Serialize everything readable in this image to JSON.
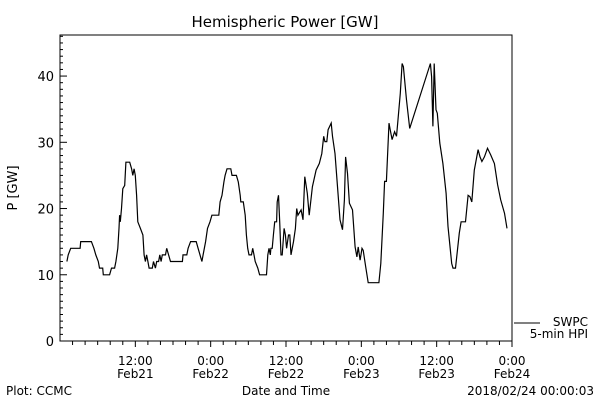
{
  "chart_data": {
    "type": "line",
    "title": "Hemispheric Power [GW]",
    "xlabel": "Date and Time",
    "ylabel": "P [GW]",
    "x_units": "hours since 0:00 Feb21",
    "xlim": [
      0,
      72
    ],
    "ylim": [
      0,
      46.2
    ],
    "grid": false,
    "y_ticks": [
      0,
      10,
      20,
      30,
      40
    ],
    "x_ticks": [
      {
        "hour": 12,
        "time": "12:00",
        "date": "Feb21"
      },
      {
        "hour": 24,
        "time": "0:00",
        "date": "Feb22"
      },
      {
        "hour": 36,
        "time": "12:00",
        "date": "Feb22"
      },
      {
        "hour": 48,
        "time": "0:00",
        "date": "Feb23"
      },
      {
        "hour": 60,
        "time": "12:00",
        "date": "Feb23"
      },
      {
        "hour": 72,
        "time": "0:00",
        "date": "Feb24"
      }
    ],
    "legend": {
      "placement": "bottom-right",
      "line1": "SWPC",
      "line2": "5-min HPI"
    },
    "series": [
      {
        "name": "SWPC 5-min HPI",
        "color": "#000000",
        "x": [
          1.1,
          1.3,
          1.7,
          3.2,
          3.3,
          5,
          5.4,
          5.7,
          6.1,
          6.3,
          6.8,
          6.9,
          7.9,
          8.2,
          8.7,
          8.9,
          9.2,
          9.4,
          9.5,
          9.6,
          9.8,
          10,
          10.3,
          10.5,
          11.1,
          11.4,
          11.6,
          11.8,
          12,
          12.2,
          12.4,
          12.8,
          13.2,
          13.4,
          13.6,
          13.8,
          14,
          14.2,
          14.7,
          14.9,
          15.2,
          15.4,
          15.7,
          15.9,
          16.1,
          16.3,
          16.8,
          17,
          17.3,
          17.6,
          19.5,
          19.6,
          20.2,
          20.4,
          20.8,
          21.7,
          22,
          22.3,
          22.6,
          22.8,
          23.2,
          23.5,
          23.9,
          24.2,
          25.3,
          25.5,
          25.8,
          26.1,
          26.3,
          26.6,
          27.2,
          27.4,
          28.1,
          28.4,
          28.7,
          28.8,
          29.2,
          29.5,
          29.7,
          29.9,
          30.1,
          30.5,
          30.7,
          30.9,
          31.1,
          31.5,
          31.8,
          32.9,
          33.1,
          33.3,
          33.5,
          33.6,
          33.8,
          34,
          34.2,
          34.5,
          34.6,
          34.8,
          35,
          35.2,
          35.4,
          35.7,
          35.9,
          36.1,
          36.4,
          36.6,
          36.8,
          37.2,
          37.5,
          37.7,
          37.9,
          38.4,
          38.7,
          39,
          39.4,
          39.7,
          40.2,
          40.8,
          41.3,
          41.7,
          42,
          42.2,
          42.5,
          42.7,
          43.2,
          43.4,
          43.8,
          44.2,
          44.6,
          45,
          45.3,
          45.5,
          45.8,
          46.1,
          46.6,
          47,
          47.3,
          47.5,
          47.8,
          48.1,
          48.3,
          48.7,
          49.1,
          50.8,
          51.1,
          51.5,
          51.7,
          52,
          52.4,
          52.6,
          52.9,
          53.3,
          53.6,
          53.8,
          54.2,
          54.5,
          54.7,
          55.2,
          55.7,
          59,
          59.2,
          59.4,
          59.6,
          59.9,
          60.1,
          60.5,
          61,
          61.5,
          61.8,
          62.4,
          62.6,
          63,
          63.6,
          63.9,
          64.6,
          65,
          65.3,
          65.6,
          66,
          66.6,
          66.9,
          67.2,
          67.6,
          68.1,
          68.6,
          69.2,
          69.7,
          70.2,
          70.8,
          71.2
        ],
        "values": [
          12,
          13,
          14,
          14,
          15,
          15,
          14,
          13,
          12,
          11,
          11,
          10,
          10,
          11,
          11,
          12,
          14,
          17,
          19,
          18,
          20,
          23,
          23.5,
          27,
          27,
          26,
          25,
          26,
          25,
          22,
          18,
          17,
          16,
          13,
          12,
          13,
          12,
          11,
          11,
          12,
          11,
          12,
          12,
          13,
          12,
          13,
          13,
          14,
          13,
          12,
          12,
          13,
          13,
          14,
          15,
          15,
          14,
          13,
          12,
          13,
          15,
          17,
          18,
          19,
          19,
          21,
          22,
          24,
          25,
          26,
          26,
          25,
          25,
          24,
          22,
          21,
          21,
          19,
          16,
          14,
          13,
          13,
          14,
          13,
          12,
          11,
          10,
          10,
          13,
          14,
          13,
          14,
          14,
          16,
          18,
          18,
          21,
          22,
          18,
          13,
          13,
          17,
          16,
          14,
          16,
          16,
          13,
          15,
          17,
          20,
          19,
          19.8,
          18.3,
          24.8,
          22.3,
          19,
          23.3,
          25.8,
          26.8,
          28.3,
          30.9,
          30.1,
          30.1,
          31.9,
          32.9,
          30.9,
          28.3,
          23.3,
          18.3,
          16.8,
          21.3,
          27.8,
          25.3,
          20.8,
          19.8,
          14.2,
          12.7,
          14.2,
          12.2,
          14,
          13.7,
          11.2,
          8.8,
          8.8,
          11.7,
          19.3,
          24.1,
          24.1,
          32.9,
          31.9,
          30.4,
          31.6,
          30.9,
          32.9,
          37.4,
          41.9,
          41.4,
          36.4,
          32.1,
          41.9,
          39.9,
          32.4,
          41.9,
          34.9,
          34.4,
          29.9,
          26.8,
          22.3,
          17.3,
          11.7,
          11,
          11,
          16.3,
          18,
          18,
          22,
          21.8,
          21,
          25.8,
          28.9,
          27.8,
          27.1,
          27.8,
          29.1,
          28.1,
          26.8,
          23.6,
          21.3,
          19.3,
          17
        ]
      }
    ]
  },
  "footer": {
    "left": "Plot: CCMC",
    "right": "2018/02/24 00:00:03"
  }
}
